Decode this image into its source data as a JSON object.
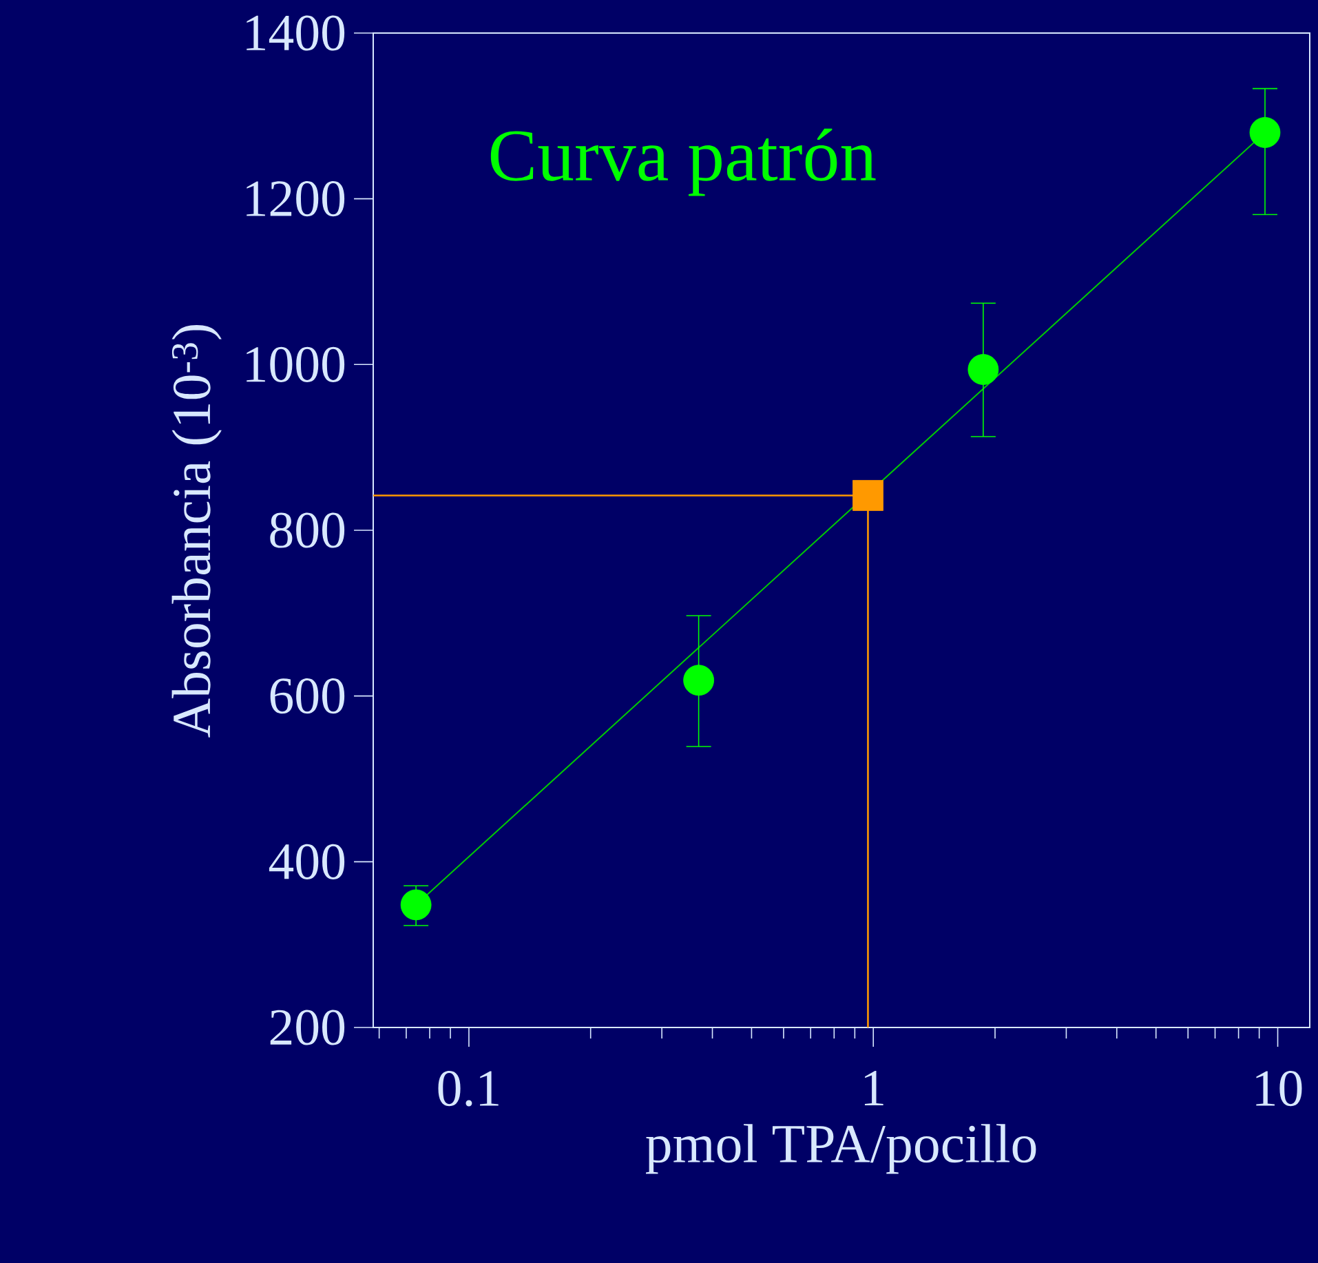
{
  "chart_data": {
    "type": "scatter",
    "title": "Curva patrón",
    "xlabel": "pmol TPA/pocillo",
    "ylabel": "Absorbancia (10$^{-3}$)",
    "log": "x",
    "xlim": [
      0.058,
      12
    ],
    "ylim": [
      200,
      1400
    ],
    "xticks": [
      0.1,
      1,
      10
    ],
    "yticks": [
      200,
      400,
      600,
      800,
      1000,
      1200,
      1400
    ],
    "series": [
      {
        "type": "line",
        "color": "#00cc00",
        "marker": "none",
        "x": [
          0.074,
          9.3
        ],
        "values": [
          348,
          1280
        ]
      },
      {
        "color": "#00ff00",
        "marker": "circle",
        "x": [
          0.074,
          0.37,
          1.87,
          9.3
        ],
        "values": [
          348,
          619,
          994,
          1280
        ],
        "errors": [
          [
            323,
            371
          ],
          [
            539,
            697
          ],
          [
            913,
            1074
          ],
          [
            1181,
            1333
          ]
        ]
      },
      {
        "color": "#ff9900",
        "marker": "square",
        "x": [
          0.97
        ],
        "values": [
          842
        ]
      }
    ],
    "ref_lines": [
      {
        "axis": "y",
        "value": 842,
        "color": "#ff9900"
      },
      {
        "axis": "x",
        "value": 0.97,
        "color": "#ff9900"
      }
    ]
  }
}
